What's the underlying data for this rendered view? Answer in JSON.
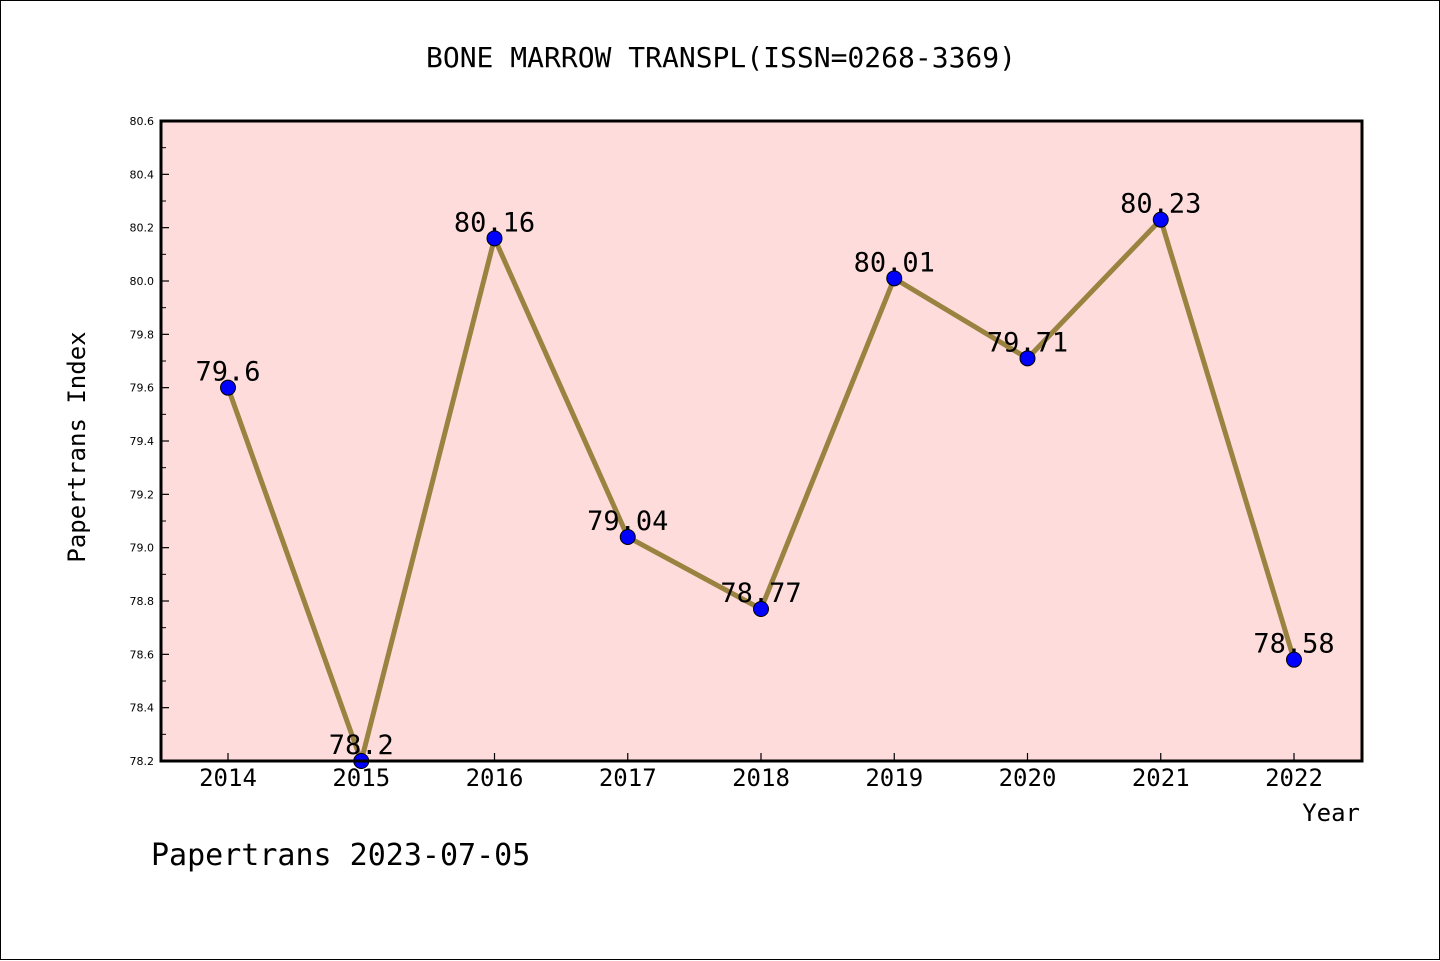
{
  "chart_data": {
    "type": "line",
    "title": "BONE MARROW TRANSPL(ISSN=0268-3369)",
    "xlabel": "Year",
    "ylabel": "Papertrans Index",
    "footer": "Papertrans 2023-07-05",
    "categories": [
      "2014",
      "2015",
      "2016",
      "2017",
      "2018",
      "2019",
      "2020",
      "2021",
      "2022"
    ],
    "values": [
      79.6,
      78.2,
      80.16,
      79.04,
      78.77,
      80.01,
      79.71,
      80.23,
      78.58
    ],
    "data_labels": [
      "79.6",
      "78.2",
      "80.16",
      "79.04",
      "78.77",
      "80.01",
      "79.71",
      "80.23",
      "78.58"
    ],
    "ylim": [
      78.2,
      80.6
    ],
    "yticks": [
      "78.2",
      "78.4",
      "78.6",
      "78.8",
      "79.0",
      "79.2",
      "79.4",
      "79.6",
      "79.8",
      "80.0",
      "80.2",
      "80.4",
      "80.6"
    ],
    "grid": false,
    "colors": {
      "plot_background": "#fedcdb",
      "line": "#9a8340",
      "marker": "#0000ff"
    }
  }
}
